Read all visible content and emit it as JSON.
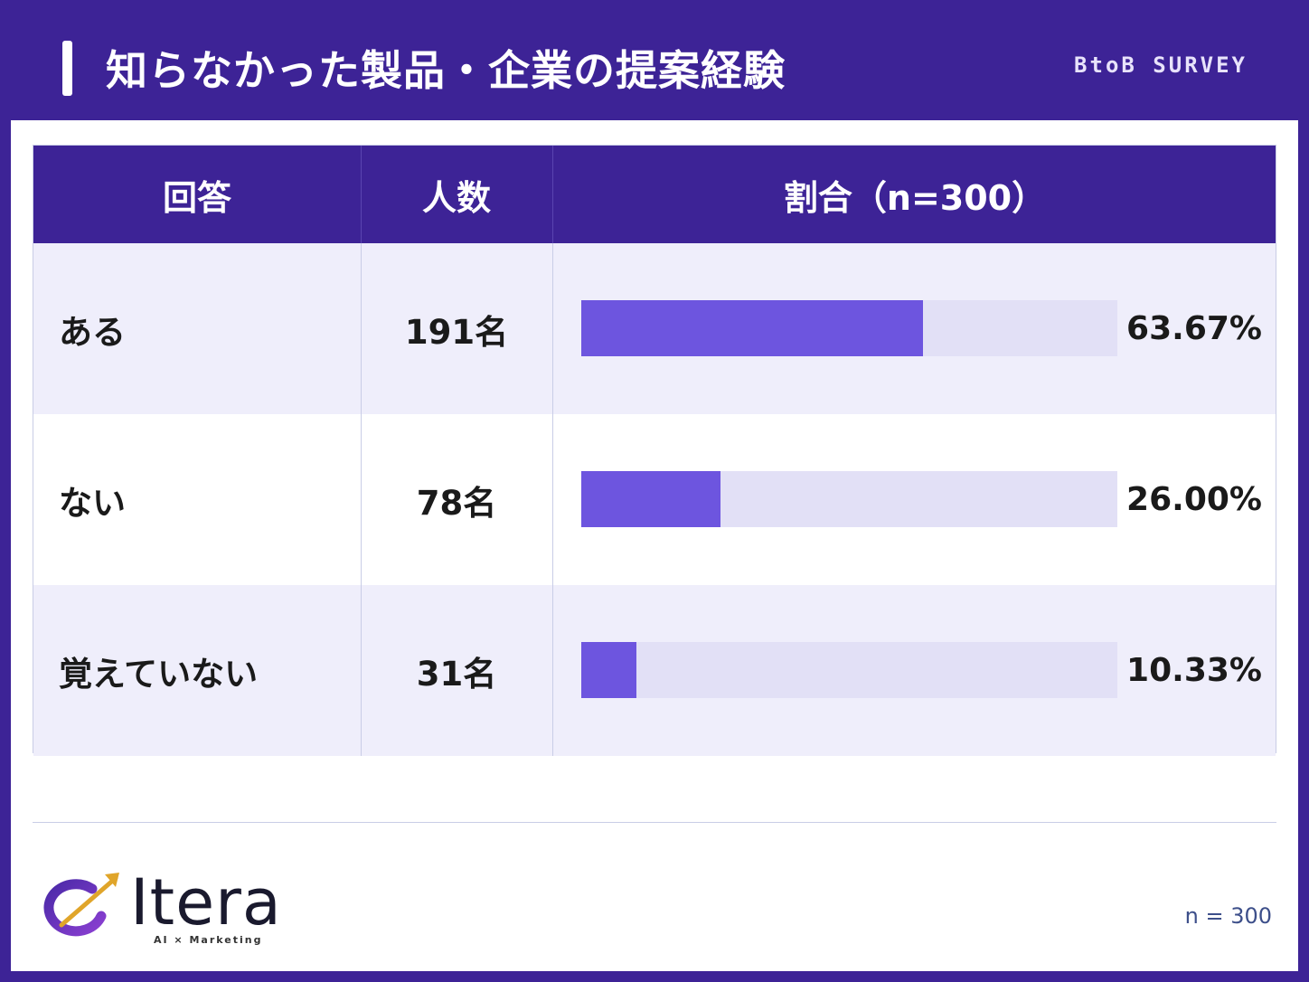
{
  "header": {
    "title": "知らなかった製品・企業の提案経験",
    "tag": "BtoB SURVEY"
  },
  "table": {
    "columns": [
      "回答",
      "人数",
      "割合（n=300）"
    ]
  },
  "chart_data": {
    "type": "bar",
    "title": "知らなかった製品・企業の提案経験",
    "categories": [
      "ある",
      "ない",
      "覚えていない"
    ],
    "counts": [
      "191名",
      "78名",
      "31名"
    ],
    "percent_labels": [
      "63.67%",
      "26.00%",
      "10.33%"
    ],
    "values": [
      63.67,
      26.0,
      10.33
    ],
    "xlim": [
      0,
      100
    ],
    "n": 300
  },
  "footer": {
    "logo_text": "Itera",
    "logo_sub": "AI × Marketing",
    "n_note": "n = 300"
  },
  "colors": {
    "brand": "#3d2396",
    "bar_fill": "#6d55df",
    "bar_track": "#e2e0f6",
    "row_shade": "#efeefb"
  }
}
